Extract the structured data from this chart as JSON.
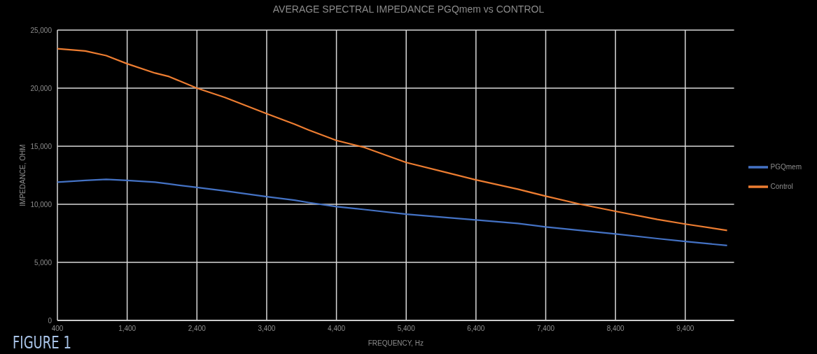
{
  "chart_data": {
    "type": "line",
    "title": "AVERAGE SPECTRAL IMPEDANCE PGQmem vs CONTROL",
    "xlabel": "FREQUENCY, Hz",
    "ylabel": "IMPEDANCE, OHM",
    "annotations": [
      "FIGURE 1"
    ],
    "x": [
      400,
      800,
      1100,
      1400,
      1800,
      2000,
      2400,
      2800,
      3400,
      3800,
      4000,
      4400,
      4800,
      5400,
      6000,
      6400,
      7000,
      7400,
      7900,
      8400,
      9000,
      9400,
      10000
    ],
    "series": [
      {
        "name": "PGQmem",
        "color": "#4472c4",
        "values": [
          11900,
          12050,
          12150,
          12050,
          11900,
          11750,
          11450,
          11150,
          10650,
          10350,
          10150,
          9800,
          9550,
          9150,
          8850,
          8650,
          8350,
          8050,
          7750,
          7450,
          7050,
          6800,
          6450
        ]
      },
      {
        "name": "Control",
        "color": "#ed7d31",
        "values": [
          23400,
          23200,
          22800,
          22100,
          21300,
          21000,
          20000,
          19200,
          17800,
          16900,
          16400,
          15500,
          14900,
          13600,
          12700,
          12100,
          11300,
          10700,
          10000,
          9400,
          8700,
          8300,
          7750
        ]
      }
    ],
    "xlim": [
      400,
      10100
    ],
    "xticks": [
      400,
      {
        "value": 1400,
        "label": "1,400"
      },
      {
        "value": 2400,
        "label": "2,400"
      },
      {
        "value": 3400,
        "label": "3,400"
      },
      {
        "value": 4400,
        "label": "4,400"
      },
      {
        "value": 5400,
        "label": "5,400"
      },
      {
        "value": 6400,
        "label": "6,400"
      },
      {
        "value": 7400,
        "label": "7,400"
      },
      {
        "value": 8400,
        "label": "8,400"
      },
      {
        "value": 9400,
        "label": "9,400"
      }
    ],
    "ylim": [
      0,
      25000
    ],
    "yticks": [
      0,
      {
        "value": 5000,
        "label": "5,000"
      },
      {
        "value": 10000,
        "label": "10,000"
      },
      {
        "value": 15000,
        "label": "15,000"
      },
      {
        "value": 20000,
        "label": "20,000"
      },
      {
        "value": 25000,
        "label": "25,000"
      }
    ],
    "grid": true,
    "legend": "right",
    "marker": "none",
    "line_style": "solid"
  }
}
